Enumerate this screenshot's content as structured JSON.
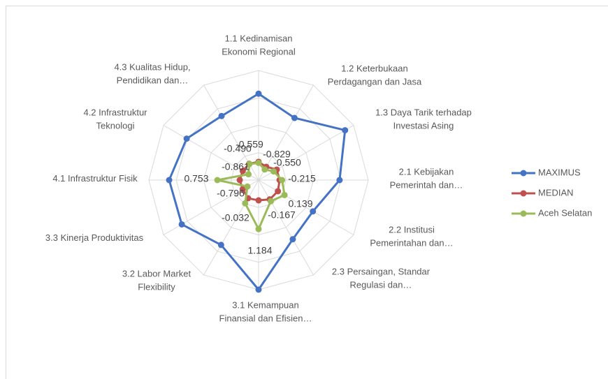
{
  "chart_data": {
    "type": "radar",
    "categories": [
      "1.1   Kedinamisan\nEkonomi Regional",
      "1.2 Keterbukaan\nPerdagangan dan Jasa",
      "1.3 Daya Tarik terhadap\nInvestasi Asing",
      "2.1 Kebijakan\nPemerintah dan…",
      "2.2 Institusi\nPemerintahan dan…",
      "2.3  Persaingan, Standar\nRegulasi dan…",
      "3.1 Kemampuan\nFinansial dan Efisien…",
      "3.2 Labor Market\nFlexibility",
      "3.3 Kinerja Produktivitas",
      "4.1 Infrastruktur Fisik",
      "4.2 Infrastruktur\nTeknologi",
      "4.3 Kualitas Hidup,\nPendidikan dan…"
    ],
    "series": [
      {
        "name": "MAXIMUS",
        "color": "#4472c4",
        "values": [
          3.23,
          2.43,
          3.96,
          2.93,
          1.93,
          2.24,
          4.5,
          2.6,
          3.35,
          3.39,
          3.04,
          2.55
        ]
      },
      {
        "name": "MEDIAN",
        "color": "#c0504d",
        "values": [
          -0.5,
          -0.66,
          -0.35,
          -0.35,
          -0.28,
          -0.28,
          -0.39,
          -0.35,
          -0.5,
          -0.47,
          -0.5,
          -0.47
        ]
      },
      {
        "name": "Aceh Selatan",
        "color": "#9bbb59",
        "values": [
          -0.559,
          -0.829,
          -0.55,
          -0.215,
          0.139,
          -0.167,
          1.184,
          -0.032,
          -0.796,
          0.753,
          -0.861,
          -0.49
        ],
        "value_labels": [
          "-0.559",
          "-0.829",
          "-0.550",
          "-0.215",
          "0.139",
          "-0.167",
          "1.184",
          "-0.032",
          "-0.796",
          "0.753",
          "-0.861",
          "-0.490"
        ]
      }
    ],
    "rlim": [
      -1.5,
      4.5
    ],
    "rticks": [
      -1.5,
      0,
      1.5,
      3,
      4.5
    ],
    "grid": true,
    "legend": "right"
  }
}
